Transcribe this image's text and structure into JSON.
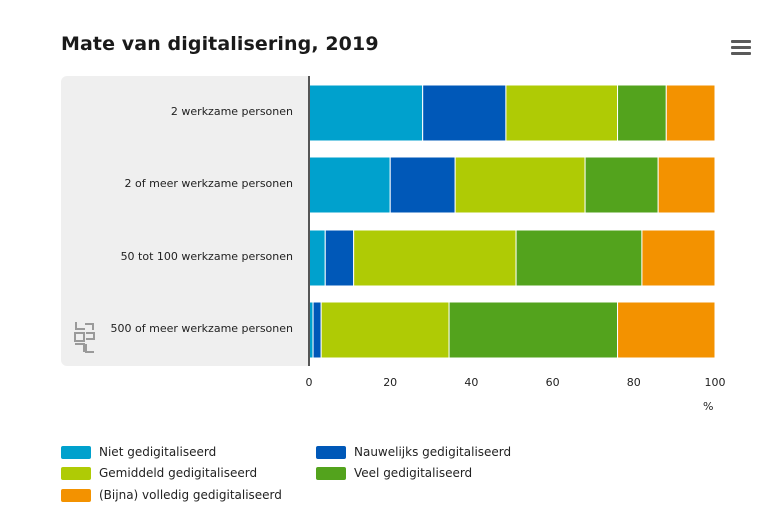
{
  "title": "Mate van digitalisering, 2019",
  "chart_data": {
    "type": "bar",
    "orientation": "horizontal",
    "stacked": true,
    "categories": [
      "2 werkzame personen",
      "2 of meer werkzame personen",
      "50 tot 100 werkzame personen",
      "500 of meer werkzame personen"
    ],
    "series": [
      {
        "name": "Niet gedigitaliseerd",
        "color": "#00a1cd",
        "values": [
          28,
          20,
          4,
          1
        ]
      },
      {
        "name": "Nauwelijks gedigitaliseerd",
        "color": "#0058b8",
        "values": [
          20.5,
          16,
          7,
          2
        ]
      },
      {
        "name": "Gemiddeld gedigitaliseerd",
        "color": "#afcb05",
        "values": [
          27.5,
          32,
          40,
          31.5
        ]
      },
      {
        "name": "Veel gedigitaliseerd",
        "color": "#53a31d",
        "values": [
          12,
          18,
          31,
          41.5
        ]
      },
      {
        "name": "(Bijna) volledig gedigitaliseerd",
        "color": "#f39200",
        "values": [
          12,
          14,
          18,
          24
        ]
      }
    ],
    "xlim": [
      0,
      100
    ],
    "xticks": [
      "0",
      "20",
      "40",
      "60",
      "80",
      "100"
    ],
    "xunit": "%",
    "legend_placement": "bottom"
  }
}
